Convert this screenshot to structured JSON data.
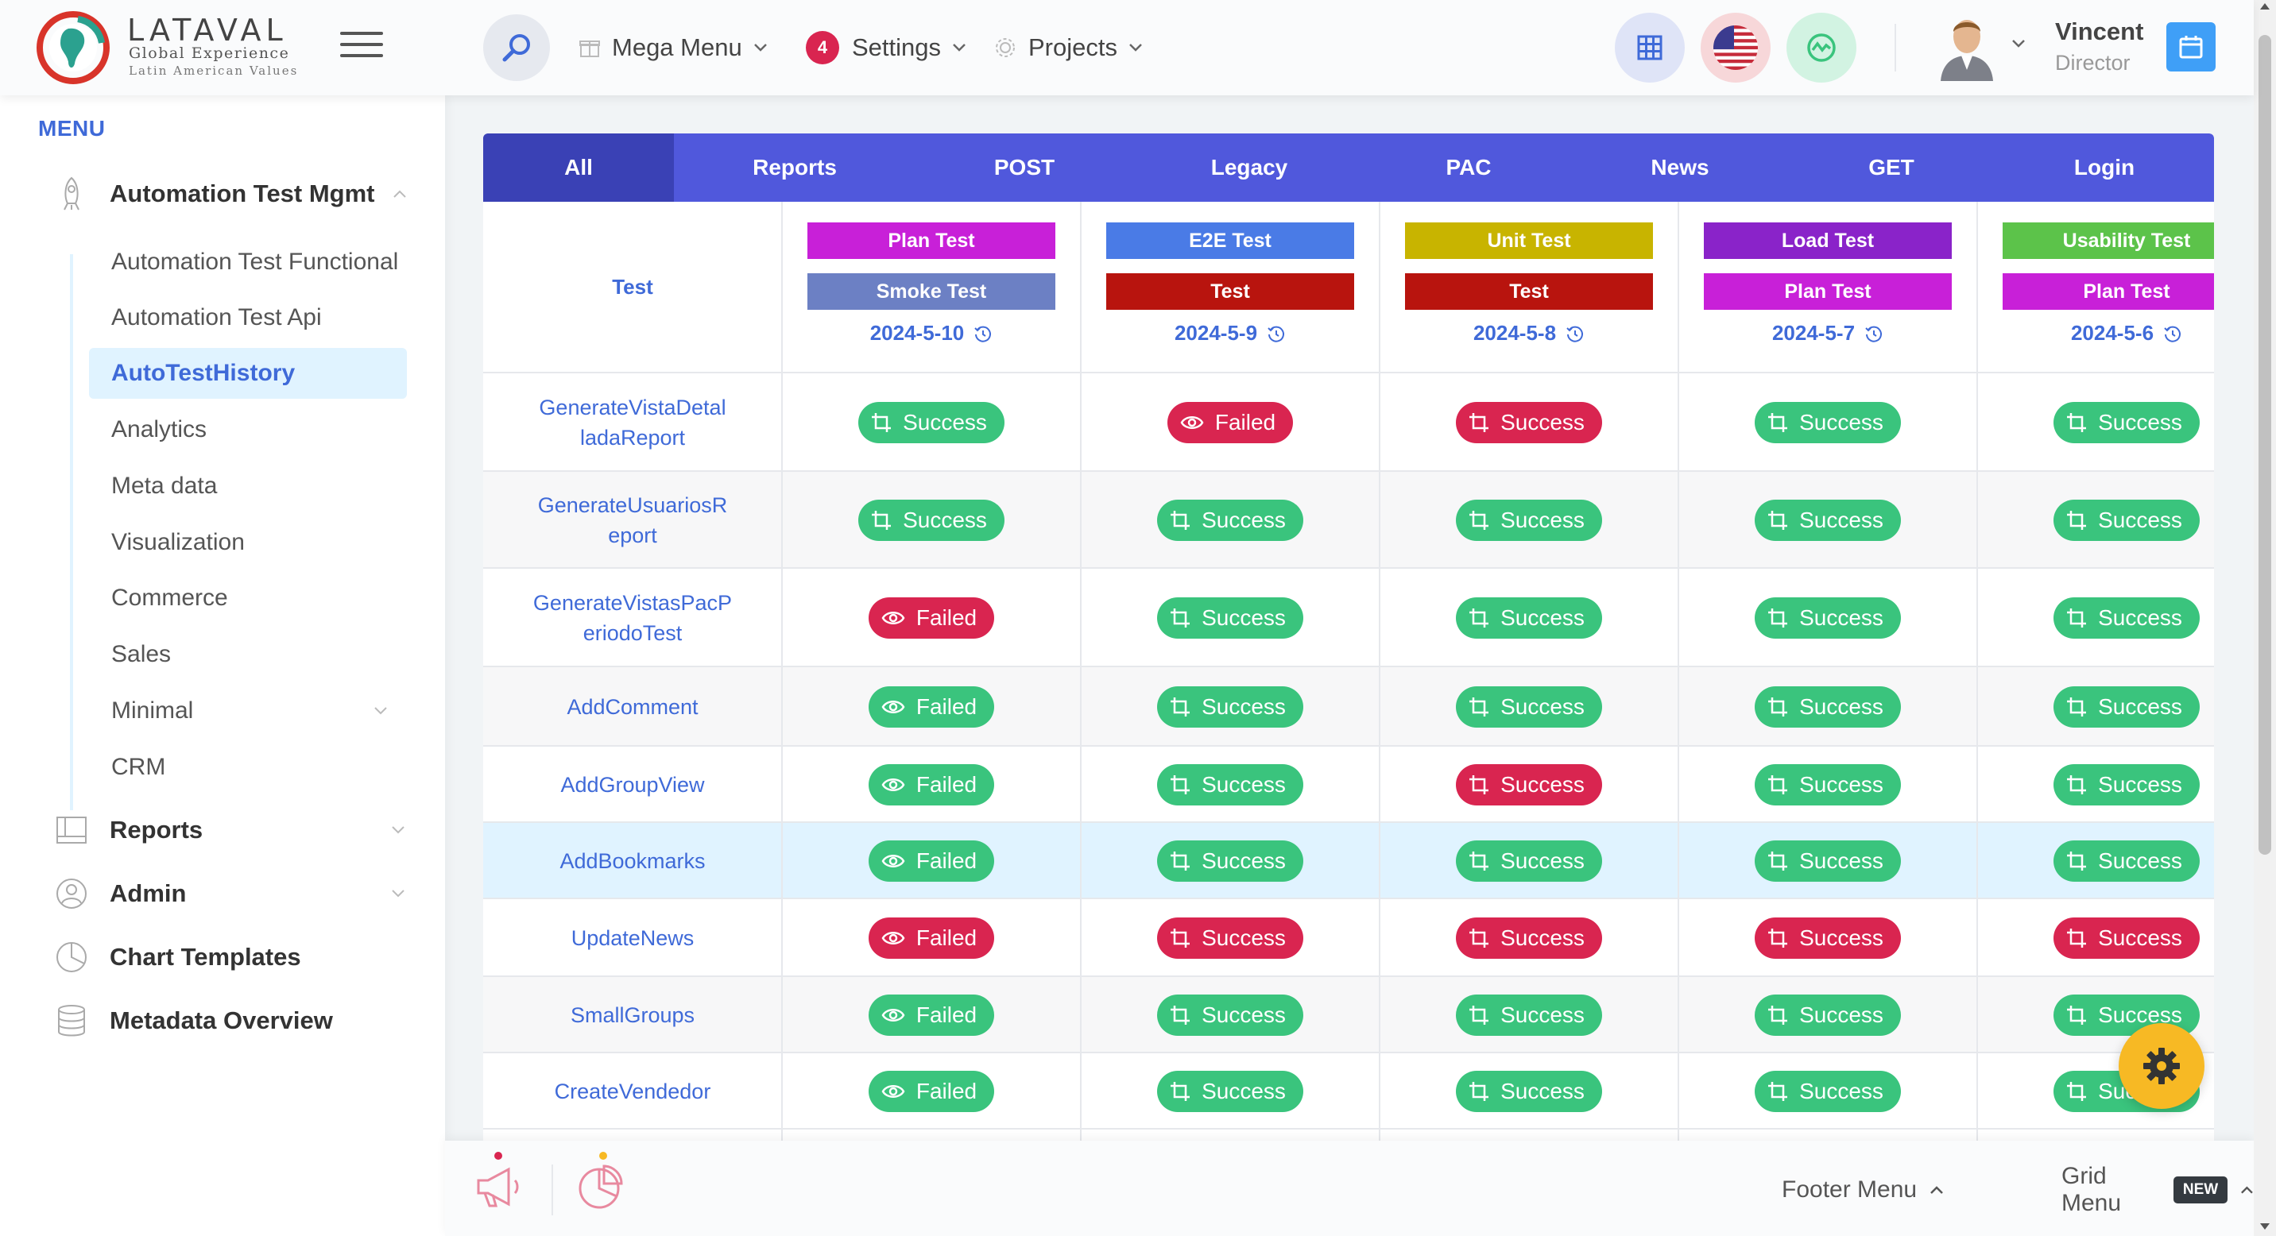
{
  "brand": {
    "name": "LATAVAL",
    "tagline1": "Global Experience",
    "tagline2": "Latin American Values"
  },
  "header": {
    "mega_menu": "Mega Menu",
    "settings": "Settings",
    "settings_count": "4",
    "projects": "Projects",
    "user_name": "Vincent",
    "user_role": "Director"
  },
  "sidebar": {
    "menu_title": "MENU",
    "group_automation": "Automation Test Mgmt",
    "items": [
      {
        "label": "Automation Test Functional"
      },
      {
        "label": "Automation Test Api"
      },
      {
        "label": "AutoTestHistory"
      },
      {
        "label": "Analytics"
      },
      {
        "label": "Meta data"
      },
      {
        "label": "Visualization"
      },
      {
        "label": "Commerce"
      },
      {
        "label": "Sales"
      },
      {
        "label": "Minimal"
      },
      {
        "label": "CRM"
      }
    ],
    "group_reports": "Reports",
    "group_admin": "Admin",
    "group_chart_templates": "Chart Templates",
    "group_metadata_overview": "Metadata Overview"
  },
  "tabs": [
    "All",
    "Reports",
    "POST",
    "Legacy",
    "PAC",
    "News",
    "GET",
    "Login"
  ],
  "table": {
    "test_header": "Test",
    "columns": [
      {
        "tag1": "Plan Test",
        "tag1_color": "#c820d8",
        "tag2": "Smoke Test",
        "tag2_color": "#6c80c4",
        "date": "2024-5-10"
      },
      {
        "tag1": "E2E Test",
        "tag1_color": "#4a7be6",
        "tag2": "Test",
        "tag2_color": "#b8140e",
        "date": "2024-5-9"
      },
      {
        "tag1": "Unit Test",
        "tag1_color": "#c8b400",
        "tag2": "Test",
        "tag2_color": "#b8140e",
        "date": "2024-5-8"
      },
      {
        "tag1": "Load Test",
        "tag1_color": "#8a23c9",
        "tag2": "Plan Test",
        "tag2_color": "#c820d8",
        "date": "2024-5-7"
      },
      {
        "tag1": "Usability Test",
        "tag1_color": "#5cc34a",
        "tag2": "Plan Test",
        "tag2_color": "#c820d8",
        "date": "2024-5-6"
      }
    ],
    "rows": [
      {
        "name": "GenerateVistaDetalladaReport",
        "name_l1": "GenerateVistaDetal",
        "name_l2": "ladaReport",
        "cells": [
          [
            "Success",
            "green",
            "crop"
          ],
          [
            "Failed",
            "red",
            "eye"
          ],
          [
            "Success",
            "red",
            "crop"
          ],
          [
            "Success",
            "green",
            "crop"
          ],
          [
            "Success",
            "green",
            "crop"
          ]
        ]
      },
      {
        "name": "GenerateUsuariosReport",
        "name_l1": "GenerateUsuariosR",
        "name_l2": "eport",
        "cells": [
          [
            "Success",
            "green",
            "crop"
          ],
          [
            "Success",
            "green",
            "crop"
          ],
          [
            "Success",
            "green",
            "crop"
          ],
          [
            "Success",
            "green",
            "crop"
          ],
          [
            "Success",
            "green",
            "crop"
          ]
        ]
      },
      {
        "name": "GenerateVistasPacPeriodoTest",
        "name_l1": "GenerateVistasPacP",
        "name_l2": "eriodoTest",
        "cells": [
          [
            "Failed",
            "red",
            "eye"
          ],
          [
            "Success",
            "green",
            "crop"
          ],
          [
            "Success",
            "green",
            "crop"
          ],
          [
            "Success",
            "green",
            "crop"
          ],
          [
            "Success",
            "green",
            "crop"
          ]
        ]
      },
      {
        "name": "AddComment",
        "name_l1": "AddComment",
        "name_l2": "",
        "cells": [
          [
            "Failed",
            "green",
            "eye"
          ],
          [
            "Success",
            "green",
            "crop"
          ],
          [
            "Success",
            "green",
            "crop"
          ],
          [
            "Success",
            "green",
            "crop"
          ],
          [
            "Success",
            "green",
            "crop"
          ]
        ]
      },
      {
        "name": "AddGroupView",
        "name_l1": "AddGroupView",
        "name_l2": "",
        "cells": [
          [
            "Failed",
            "green",
            "eye"
          ],
          [
            "Success",
            "green",
            "crop"
          ],
          [
            "Success",
            "red",
            "crop"
          ],
          [
            "Success",
            "green",
            "crop"
          ],
          [
            "Success",
            "green",
            "crop"
          ]
        ]
      },
      {
        "name": "AddBookmarks",
        "name_l1": "AddBookmarks",
        "name_l2": "",
        "cells": [
          [
            "Failed",
            "green",
            "eye"
          ],
          [
            "Success",
            "green",
            "crop"
          ],
          [
            "Success",
            "green",
            "crop"
          ],
          [
            "Success",
            "green",
            "crop"
          ],
          [
            "Success",
            "green",
            "crop"
          ]
        ]
      },
      {
        "name": "UpdateNews",
        "name_l1": "UpdateNews",
        "name_l2": "",
        "cells": [
          [
            "Failed",
            "red",
            "eye"
          ],
          [
            "Success",
            "red",
            "crop"
          ],
          [
            "Success",
            "red",
            "crop"
          ],
          [
            "Success",
            "red",
            "crop"
          ],
          [
            "Success",
            "red",
            "crop"
          ]
        ]
      },
      {
        "name": "SmallGroups",
        "name_l1": "SmallGroups",
        "name_l2": "",
        "cells": [
          [
            "Failed",
            "green",
            "eye"
          ],
          [
            "Success",
            "green",
            "crop"
          ],
          [
            "Success",
            "green",
            "crop"
          ],
          [
            "Success",
            "green",
            "crop"
          ],
          [
            "Success",
            "green",
            "crop"
          ]
        ]
      },
      {
        "name": "CreateVendedor",
        "name_l1": "CreateVendedor",
        "name_l2": "",
        "cells": [
          [
            "Failed",
            "green",
            "eye"
          ],
          [
            "Success",
            "green",
            "crop"
          ],
          [
            "Success",
            "green",
            "crop"
          ],
          [
            "Success",
            "green",
            "crop"
          ],
          [
            "Success",
            "green",
            "crop"
          ]
        ]
      }
    ]
  },
  "footer": {
    "footer_menu": "Footer Menu",
    "grid_menu": "Grid Menu",
    "new_badge": "NEW"
  },
  "colors": {
    "primary": "#3f6ad8",
    "tabs_bg": "#5058dc",
    "success": "#3ac47d",
    "danger": "#d92550",
    "warning": "#f7b924"
  }
}
